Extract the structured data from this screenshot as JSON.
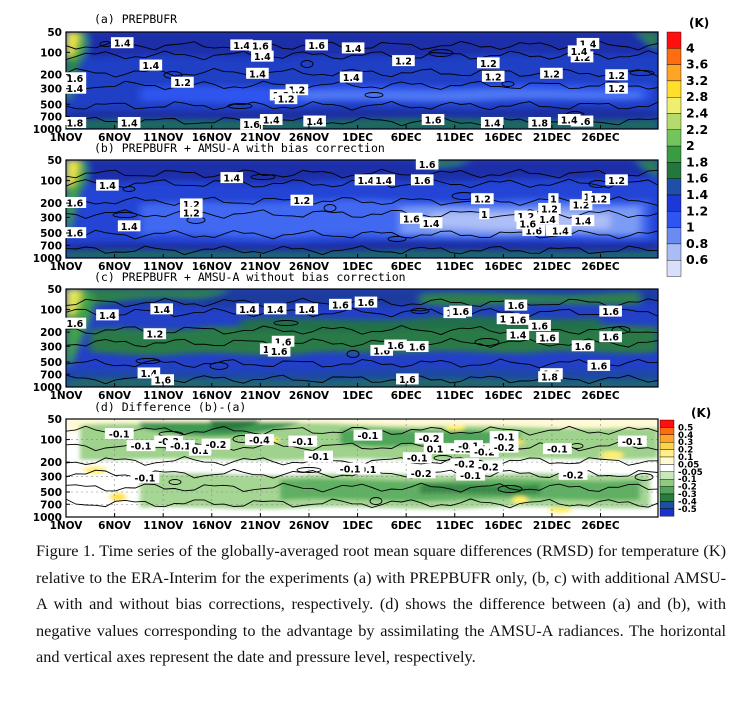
{
  "figure": {
    "pressure_ticks": [
      "50",
      "100",
      "200",
      "300",
      "500",
      "700",
      "1000"
    ],
    "date_ticks": [
      "1NOV",
      "6NOV",
      "11NOV",
      "16NOV",
      "21NOV",
      "26NOV",
      "1DEC",
      "6DEC",
      "11DEC",
      "16DEC",
      "21DEC",
      "26DEC"
    ],
    "panels": [
      {
        "title": "(a) PREPBUFR",
        "labels": [
          {
            "t": "1.4",
            "x": 28.5,
            "y": 15
          },
          {
            "t": "1.6",
            "x": 4.5,
            "y": 62
          },
          {
            "t": "1.4",
            "x": 4.5,
            "y": 76
          },
          {
            "t": "1.8",
            "x": 4.5,
            "y": 122
          },
          {
            "t": "1.4",
            "x": 32,
            "y": 122
          },
          {
            "t": "1.4",
            "x": 43,
            "y": 45
          },
          {
            "t": "1.2",
            "x": 59,
            "y": 68
          },
          {
            "t": "1.4",
            "x": 89,
            "y": 18
          },
          {
            "t": "1.6",
            "x": 98.5,
            "y": 19
          },
          {
            "t": "1.4",
            "x": 99.5,
            "y": 33
          },
          {
            "t": "1.6",
            "x": 127,
            "y": 18
          },
          {
            "t": "1.4",
            "x": 97,
            "y": 56
          },
          {
            "t": "1.2",
            "x": 117,
            "y": 78
          },
          {
            "t": "1.2",
            "x": 109,
            "y": 85
          },
          {
            "t": "1.2",
            "x": 111.5,
            "y": 90
          },
          {
            "t": "1.6",
            "x": 94,
            "y": 124
          },
          {
            "t": "1.4",
            "x": 104,
            "y": 118
          },
          {
            "t": "1.4",
            "x": 126,
            "y": 120
          },
          {
            "t": "1.4",
            "x": 145.5,
            "y": 22
          },
          {
            "t": "1.4",
            "x": 144.5,
            "y": 61
          },
          {
            "t": "1.2",
            "x": 171,
            "y": 39
          },
          {
            "t": "1.6",
            "x": 186,
            "y": 118
          },
          {
            "t": "1.2",
            "x": 214,
            "y": 42
          },
          {
            "t": "1.2",
            "x": 216.5,
            "y": 60
          },
          {
            "t": "1.4",
            "x": 216,
            "y": 122
          },
          {
            "t": "1.2",
            "x": 246,
            "y": 56
          },
          {
            "t": "1.8",
            "x": 240,
            "y": 122
          },
          {
            "t": "1.2",
            "x": 261.5,
            "y": 34
          },
          {
            "t": "1.6",
            "x": 261.5,
            "y": 120
          },
          {
            "t": "1.4",
            "x": 264.5,
            "y": 16
          },
          {
            "t": "1.4",
            "x": 260,
            "y": 26
          },
          {
            "t": "1.2",
            "x": 279,
            "y": 58
          },
          {
            "t": "1.2",
            "x": 279,
            "y": 76
          },
          {
            "t": "1.4",
            "x": 255,
            "y": 118
          }
        ]
      },
      {
        "title": "(b) PREPBUFR + AMSU-A with bias correction",
        "labels": [
          {
            "t": "1.4",
            "x": 21,
            "y": 34
          },
          {
            "t": "1.6",
            "x": 4.5,
            "y": 57
          },
          {
            "t": "1.2",
            "x": 63.5,
            "y": 59
          },
          {
            "t": "1.2",
            "x": 63.5,
            "y": 70
          },
          {
            "t": "1.4",
            "x": 32,
            "y": 88
          },
          {
            "t": "1.6",
            "x": 4.5,
            "y": 97
          },
          {
            "t": "1.4",
            "x": 84,
            "y": 24
          },
          {
            "t": "1.2",
            "x": 119.5,
            "y": 54
          },
          {
            "t": "1.4",
            "x": 152,
            "y": 27
          },
          {
            "t": "1.4",
            "x": 161,
            "y": 27
          },
          {
            "t": "1.6",
            "x": 180.5,
            "y": 27
          },
          {
            "t": "1.6",
            "x": 183,
            "y": 6
          },
          {
            "t": "1.6",
            "x": 175,
            "y": 78
          },
          {
            "t": "1.4",
            "x": 185,
            "y": 84
          },
          {
            "t": "1.2",
            "x": 211,
            "y": 52
          },
          {
            "t": "1.2",
            "x": 233,
            "y": 75
          },
          {
            "t": "1.6",
            "x": 237,
            "y": 94
          },
          {
            "t": "1.4",
            "x": 244,
            "y": 79
          },
          {
            "t": "1.6",
            "x": 234,
            "y": 85
          },
          {
            "t": "1",
            "x": 247,
            "y": 52
          },
          {
            "t": "1",
            "x": 212,
            "y": 72
          },
          {
            "t": "1.4",
            "x": 262,
            "y": 81
          },
          {
            "t": "1.2",
            "x": 279,
            "y": 27
          },
          {
            "t": "1.2",
            "x": 261,
            "y": 60
          },
          {
            "t": "1",
            "x": 264,
            "y": 49
          },
          {
            "t": "1.2",
            "x": 270,
            "y": 52
          },
          {
            "t": "1.6",
            "x": 249,
            "y": 94
          },
          {
            "t": "1.4",
            "x": 250.5,
            "y": 94
          },
          {
            "t": "1.2",
            "x": 245,
            "y": 65
          }
        ]
      },
      {
        "title": "(c) PREPBUFR + AMSU-A without bias correction",
        "labels": [
          {
            "t": "1.4",
            "x": 21,
            "y": 35
          },
          {
            "t": "1.6",
            "x": 4.5,
            "y": 46
          },
          {
            "t": "1.4",
            "x": 48.5,
            "y": 27
          },
          {
            "t": "1.2",
            "x": 45,
            "y": 60
          },
          {
            "t": "1.4",
            "x": 42,
            "y": 112
          },
          {
            "t": "1.6",
            "x": 49,
            "y": 121
          },
          {
            "t": "1.4",
            "x": 92,
            "y": 27
          },
          {
            "t": "1.4",
            "x": 106,
            "y": 27
          },
          {
            "t": "1.6",
            "x": 110,
            "y": 70
          },
          {
            "t": "1.8",
            "x": 104,
            "y": 80
          },
          {
            "t": "1.6",
            "x": 108,
            "y": 83
          },
          {
            "t": "1.4",
            "x": 122,
            "y": 27
          },
          {
            "t": "1.6",
            "x": 139,
            "y": 21
          },
          {
            "t": "1.6",
            "x": 152,
            "y": 18
          },
          {
            "t": "1.6",
            "x": 160,
            "y": 82
          },
          {
            "t": "1.6",
            "x": 167,
            "y": 75
          },
          {
            "t": "1.6",
            "x": 178,
            "y": 77
          },
          {
            "t": "1.6",
            "x": 173,
            "y": 120
          },
          {
            "t": "1.6",
            "x": 197,
            "y": 32
          },
          {
            "t": "1.6",
            "x": 200,
            "y": 30
          },
          {
            "t": "1.6",
            "x": 228,
            "y": 22
          },
          {
            "t": "1.6",
            "x": 224,
            "y": 40
          },
          {
            "t": "1.6",
            "x": 229,
            "y": 41
          },
          {
            "t": "1.4",
            "x": 229,
            "y": 61
          },
          {
            "t": "1.6",
            "x": 240,
            "y": 49
          },
          {
            "t": "1.6",
            "x": 244,
            "y": 65
          },
          {
            "t": "1.6",
            "x": 262,
            "y": 76
          },
          {
            "t": "1.6",
            "x": 246,
            "y": 113
          },
          {
            "t": "1.8",
            "x": 245,
            "y": 117
          },
          {
            "t": "1.6",
            "x": 276,
            "y": 30
          },
          {
            "t": "1.6",
            "x": 276,
            "y": 64
          },
          {
            "t": "1.6",
            "x": 270,
            "y": 102
          }
        ]
      },
      {
        "title": "(d) Difference (b)-(a)",
        "labels": [
          {
            "t": "-0.1",
            "x": 27,
            "y": 20
          },
          {
            "t": "-0.3",
            "x": 52,
            "y": 30
          },
          {
            "t": "-0.1",
            "x": 58,
            "y": 36
          },
          {
            "t": "0.1",
            "x": 68,
            "y": 42
          },
          {
            "t": "-0.2",
            "x": 76,
            "y": 34
          },
          {
            "t": "-0.4",
            "x": 98,
            "y": 28
          },
          {
            "t": "-0.1",
            "x": 120,
            "y": 30
          },
          {
            "t": "-0.1",
            "x": 153,
            "y": 22
          },
          {
            "t": "-0.1",
            "x": 152,
            "y": 67
          },
          {
            "t": "-0.2",
            "x": 184,
            "y": 26
          },
          {
            "t": "-0.1",
            "x": 178,
            "y": 52
          },
          {
            "t": "0.1",
            "x": 187,
            "y": 40
          },
          {
            "t": "0.1",
            "x": 209,
            "y": 40
          },
          {
            "t": "-0.1",
            "x": 200,
            "y": 40
          },
          {
            "t": "-0.1",
            "x": 204,
            "y": 36
          },
          {
            "t": "-0.2",
            "x": 202,
            "y": 60
          },
          {
            "t": "-0.2",
            "x": 212,
            "y": 44
          },
          {
            "t": "-0.1",
            "x": 222,
            "y": 24
          },
          {
            "t": "-0.2",
            "x": 222,
            "y": 38
          },
          {
            "t": "-0.1",
            "x": 249,
            "y": 40
          },
          {
            "t": "-0.2",
            "x": 257,
            "y": 74
          },
          {
            "t": "-0.1",
            "x": 287,
            "y": 30
          },
          {
            "t": "-0.2",
            "x": 180,
            "y": 72
          },
          {
            "t": "-0.1",
            "x": 205,
            "y": 75
          },
          {
            "t": "-0.1",
            "x": 144,
            "y": 66
          },
          {
            "t": "-0.1",
            "x": 128,
            "y": 50
          },
          {
            "t": "-0.1",
            "x": 40,
            "y": 78
          },
          {
            "t": "-0.2",
            "x": 214,
            "y": 64
          },
          {
            "t": "-0.1",
            "x": 38,
            "y": 36
          }
        ]
      }
    ],
    "colorbar_rmsd": {
      "unit": "(K)",
      "ticks": [
        "4",
        "3.6",
        "3.2",
        "2.8",
        "2.4",
        "2.2",
        "2",
        "1.8",
        "1.6",
        "1.4",
        "1.2",
        "1",
        "0.8",
        "0.6"
      ],
      "colors": [
        "#ff1010",
        "#ff6d10",
        "#ffa424",
        "#ffdf2c",
        "#f0ee6e",
        "#b4dc6c",
        "#72c45c",
        "#3a9c40",
        "#22773c",
        "#1f4fa8",
        "#1c38d8",
        "#2e55f2",
        "#6a8cf0",
        "#a9bcf6",
        "#d9dffa"
      ]
    },
    "colorbar_diff": {
      "unit": "(K)",
      "ticks": [
        "0.5",
        "0.4",
        "0.3",
        "0.2",
        "0.1",
        "0.05",
        "-0.05",
        "-0.1",
        "-0.2",
        "-0.3",
        "-0.4",
        "-0.5"
      ],
      "colors": [
        "#ff1010",
        "#ff6d10",
        "#ffa424",
        "#ffd34a",
        "#fff08a",
        "#fffad0",
        "#ffffff",
        "#c8e8bc",
        "#8fcb7e",
        "#4fa55a",
        "#2a7c3c",
        "#1b4fa0",
        "#1a30d0"
      ]
    },
    "caption": "Figure 1. Time series of the globally-averaged root mean square differences (RMSD) for temperature (K) relative to the ERA-Interim for the experiments (a) with PREPBUFR only, (b, c) with additional AMSU-A with and without bias corrections, respectively. (d) shows the difference between (a) and (b), with negative values corresponding to the advantage by assimilating the AMSU-A radiances. The horizontal and vertical axes represent the date and pressure level, respectively."
  }
}
